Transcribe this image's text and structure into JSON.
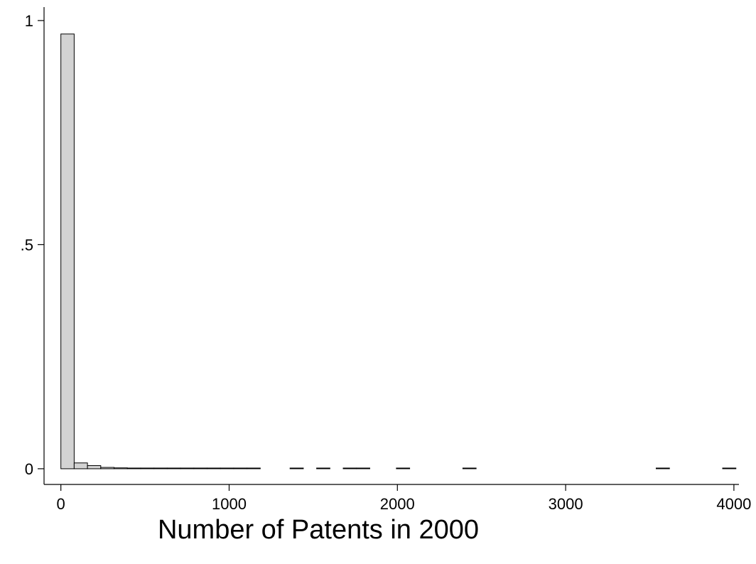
{
  "chart_data": {
    "type": "bar",
    "title": "",
    "xlabel": "Number of Patents in 2000",
    "ylabel": "",
    "xlim": [
      -100,
      4030
    ],
    "ylim": [
      -0.035,
      1.03
    ],
    "x_ticks": [
      0,
      1000,
      2000,
      3000,
      4000
    ],
    "x_tick_labels": [
      "0",
      "1000",
      "2000",
      "3000",
      "4000"
    ],
    "y_ticks": [
      0,
      0.5,
      1
    ],
    "y_tick_labels": [
      "0",
      ".5",
      "1"
    ],
    "grid": false,
    "bin_width": 79,
    "bins": [
      {
        "start": 0,
        "value": 0.97
      },
      {
        "start": 79,
        "value": 0.013
      },
      {
        "start": 158,
        "value": 0.007
      },
      {
        "start": 237,
        "value": 0.003
      },
      {
        "start": 316,
        "value": 0.002
      },
      {
        "start": 395,
        "value": 0.001
      },
      {
        "start": 474,
        "value": 0.001
      },
      {
        "start": 553,
        "value": 0.0008
      },
      {
        "start": 632,
        "value": 0.0008
      },
      {
        "start": 711,
        "value": 0.0006
      },
      {
        "start": 790,
        "value": 0.0006
      },
      {
        "start": 869,
        "value": 0.0005
      },
      {
        "start": 948,
        "value": 0.0005
      },
      {
        "start": 1027,
        "value": 0.0004
      },
      {
        "start": 1106,
        "value": 0.0004
      },
      {
        "start": 1362,
        "value": 0.0002
      },
      {
        "start": 1520,
        "value": 0.0002
      },
      {
        "start": 1678,
        "value": 0.0002
      },
      {
        "start": 1757,
        "value": 0.0002
      },
      {
        "start": 1994,
        "value": 0.0002
      },
      {
        "start": 2389,
        "value": 0.0002
      },
      {
        "start": 3538,
        "value": 0.0002
      },
      {
        "start": 3933,
        "value": 0.0002
      }
    ]
  }
}
